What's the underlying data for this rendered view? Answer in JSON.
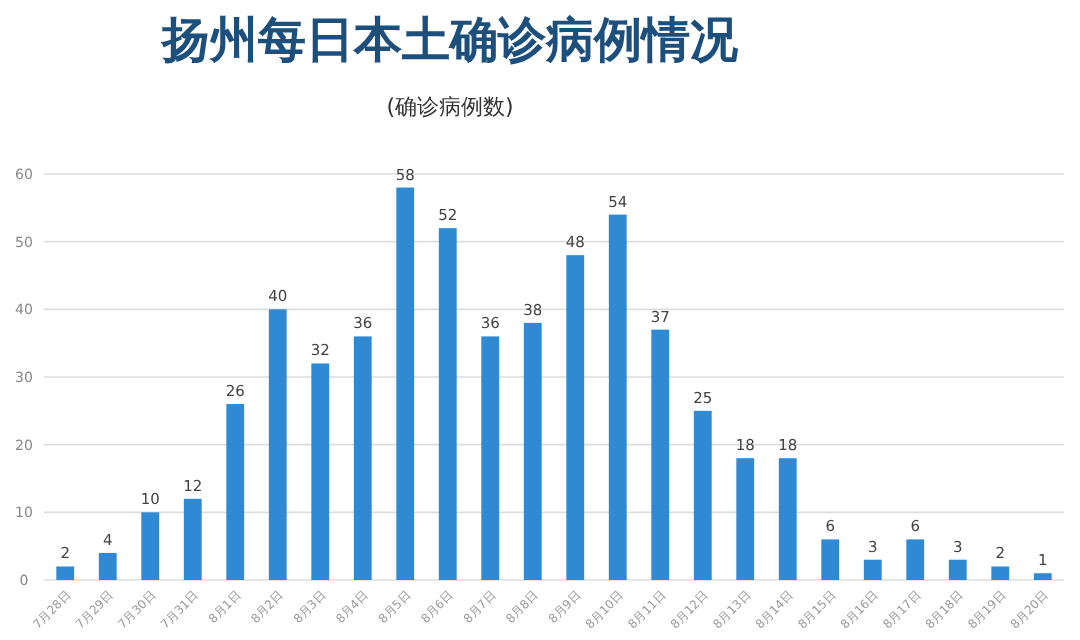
{
  "chart_data": {
    "type": "bar",
    "title": "扬州每日本土确诊病例情况",
    "subtitle": "(确诊病例数)",
    "categories": [
      "7月28日",
      "7月29日",
      "7月30日",
      "7月31日",
      "8月1日",
      "8月2日",
      "8月3日",
      "8月4日",
      "8月5日",
      "8月6日",
      "8月7日",
      "8月8日",
      "8月9日",
      "8月10日",
      "8月11日",
      "8月12日",
      "8月13日",
      "8月14日",
      "8月15日",
      "8月16日",
      "8月17日",
      "8月18日",
      "8月19日",
      "8月20日"
    ],
    "values": [
      2,
      4,
      10,
      12,
      26,
      40,
      32,
      36,
      58,
      52,
      36,
      38,
      48,
      54,
      37,
      25,
      18,
      18,
      6,
      3,
      6,
      3,
      2,
      1
    ],
    "color": "#2f8ad3",
    "ylim": [
      0,
      60
    ],
    "yticks": [
      0,
      10,
      20,
      30,
      40,
      50,
      60
    ],
    "grid": "y",
    "data_labels": true
  }
}
